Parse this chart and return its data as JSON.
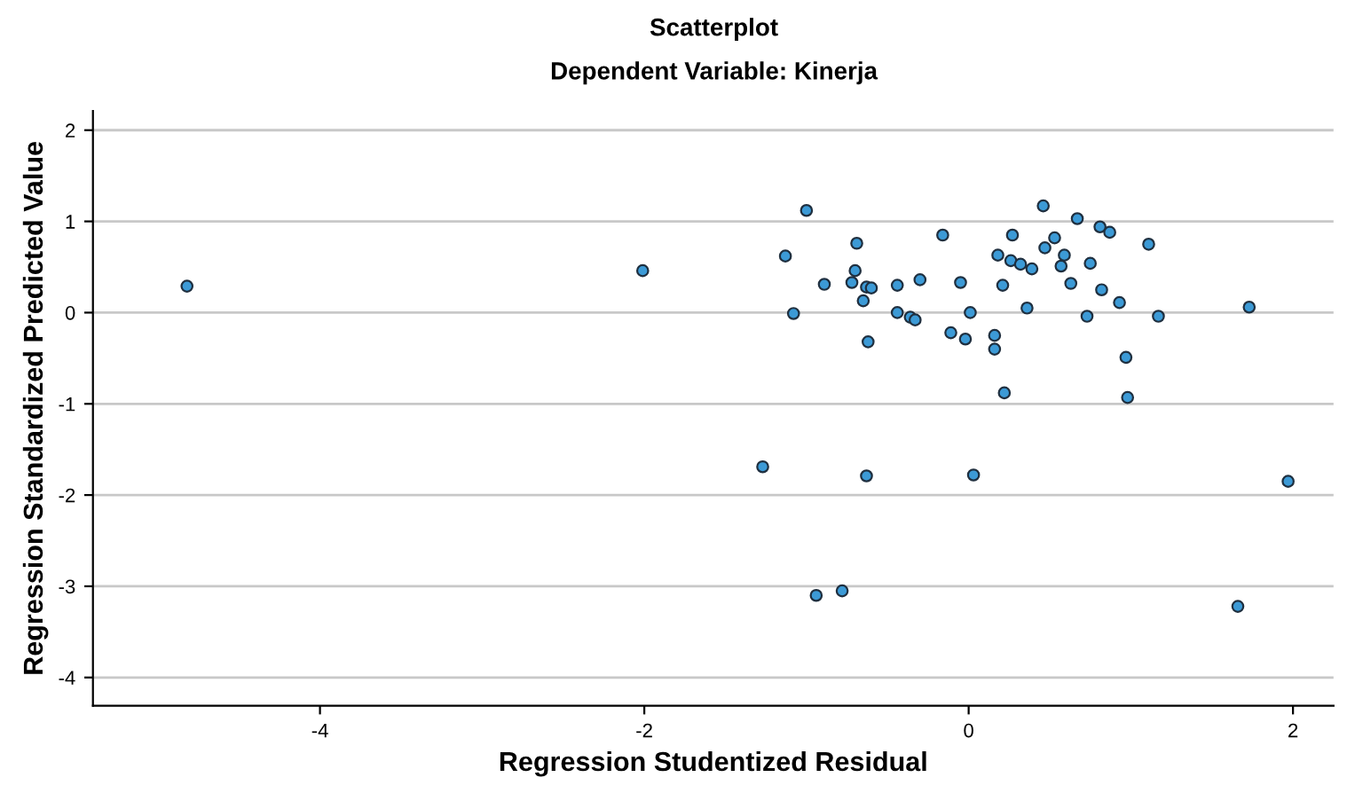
{
  "chart_data": {
    "type": "scatter",
    "title": "Scatterplot",
    "subtitle": "Dependent Variable: Kinerja",
    "xlabel": "Regression Studentized Residual",
    "ylabel": "Regression Standardized Predicted Value",
    "x": [
      -4.82,
      -2.01,
      -1.0,
      -1.13,
      -1.08,
      -0.89,
      -0.69,
      -0.7,
      -0.72,
      -0.63,
      -0.6,
      -0.65,
      -0.62,
      -0.44,
      -0.44,
      -0.36,
      -0.33,
      -0.3,
      -0.16,
      -0.05,
      -0.11,
      -0.02,
      0.01,
      0.18,
      0.21,
      0.16,
      0.16,
      0.22,
      0.27,
      0.26,
      0.32,
      0.39,
      0.36,
      0.46,
      0.47,
      0.53,
      0.57,
      0.59,
      0.63,
      0.67,
      0.75,
      0.73,
      0.81,
      0.87,
      0.82,
      0.93,
      0.97,
      0.98,
      1.11,
      1.17,
      1.73,
      -1.27,
      -0.63,
      0.03,
      1.97,
      -0.94,
      -0.78,
      1.66
    ],
    "values": [
      0.29,
      0.46,
      1.12,
      0.62,
      -0.01,
      0.31,
      0.76,
      0.46,
      0.33,
      0.28,
      0.27,
      0.13,
      -0.32,
      0.3,
      0.0,
      -0.05,
      -0.08,
      0.36,
      0.85,
      0.33,
      -0.22,
      -0.29,
      0.0,
      0.63,
      0.3,
      -0.25,
      -0.4,
      -0.88,
      0.85,
      0.57,
      0.53,
      0.48,
      0.05,
      1.17,
      0.71,
      0.82,
      0.51,
      0.63,
      0.32,
      1.03,
      0.54,
      -0.04,
      0.94,
      0.88,
      0.25,
      0.11,
      -0.49,
      -0.93,
      0.75,
      -0.04,
      0.06,
      -1.69,
      -1.79,
      -1.78,
      -1.85,
      -3.1,
      -3.05,
      -3.22
    ],
    "color": "#3c9ad6",
    "marker": "circle",
    "grid": "y",
    "xlim": [
      -5.4,
      2.25
    ],
    "ylim": [
      -4.31,
      2.21
    ],
    "xticks": [
      -4,
      -2,
      0,
      2
    ],
    "yticks": [
      -4,
      -3,
      -2,
      -1,
      0,
      1,
      2
    ]
  }
}
